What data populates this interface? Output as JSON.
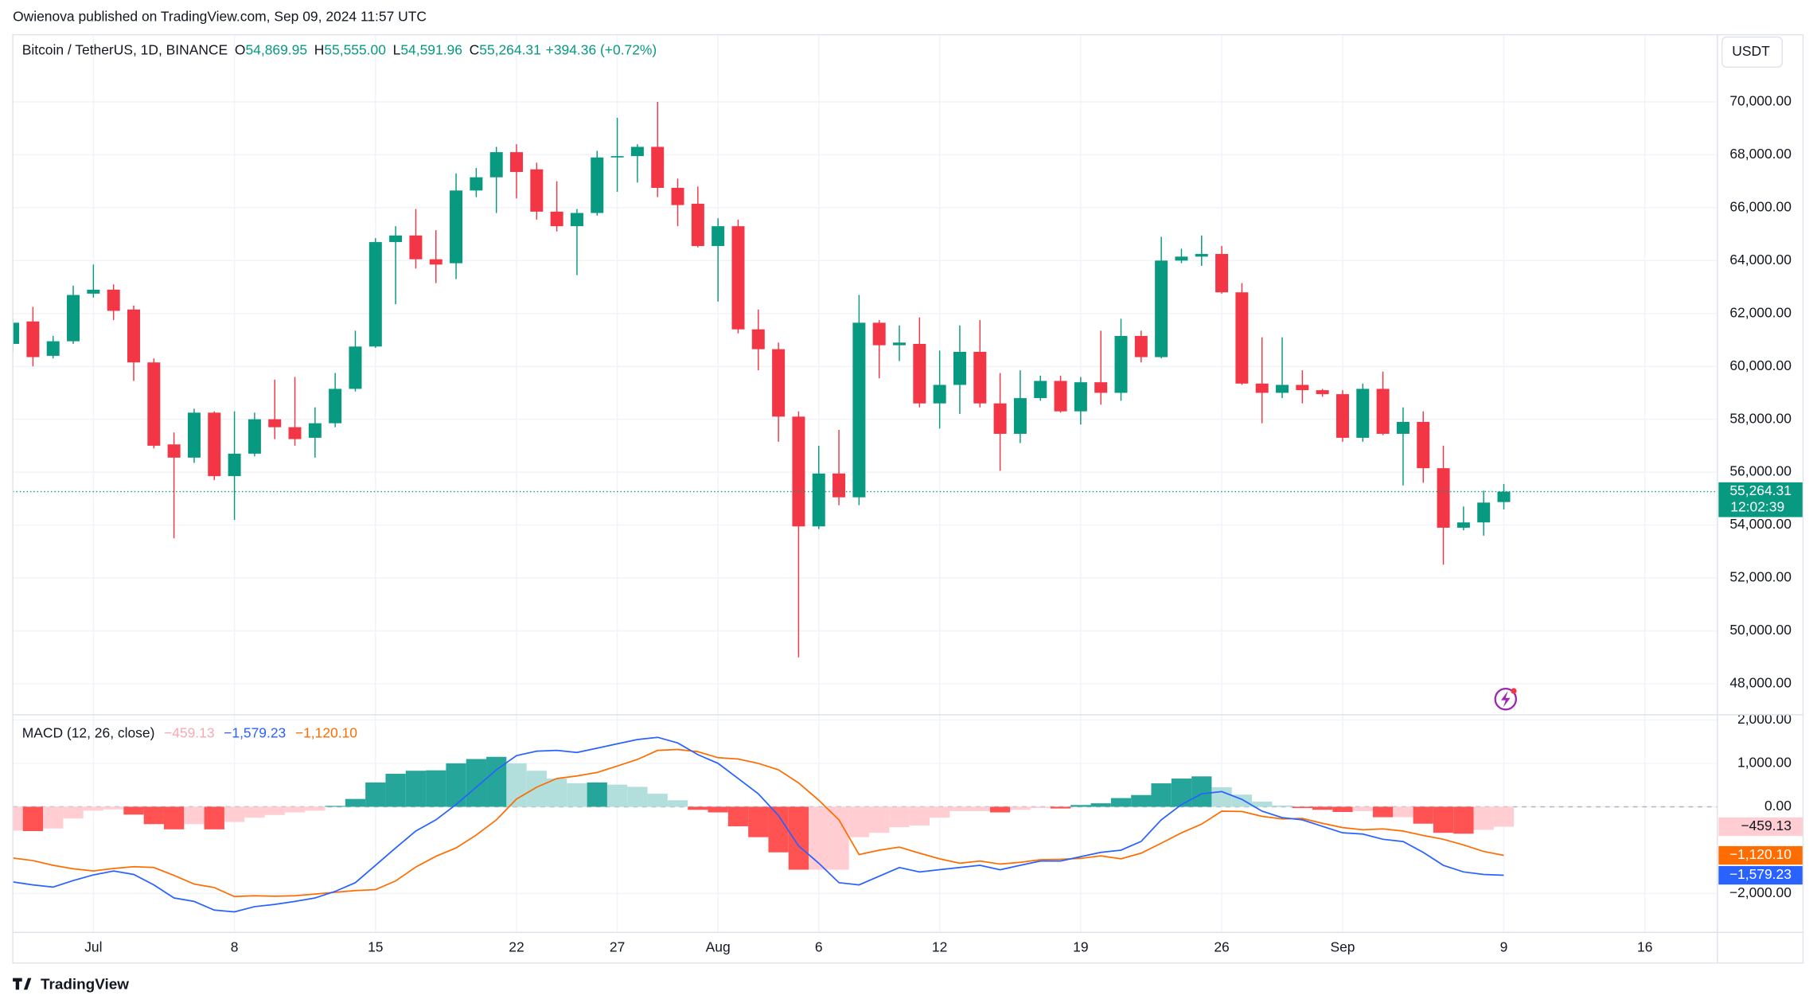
{
  "header": {
    "publisher": "Owienova published on TradingView.com, Sep 09, 2024 11:57 UTC",
    "footer_brand": "TradingView"
  },
  "chart_data": [
    {
      "type": "candlestick",
      "title": "Bitcoin / TetherUS, 1D, BINANCE",
      "ohlc_legend": [
        {
          "key": "O",
          "text": "54,869.95"
        },
        {
          "key": "H",
          "text": "55,555.00"
        },
        {
          "key": "L",
          "text": "54,591.96"
        },
        {
          "key": "C",
          "text": "55,264.31"
        }
      ],
      "change_text": "+394.36 (+0.72%)",
      "currency": "USDT",
      "last_price_label": "55,264.31",
      "countdown": "12:02:39",
      "up_color": "#089981",
      "down_color": "#f23645",
      "xlim": [
        0,
        84.6
      ],
      "xticks": [
        {
          "value": 4,
          "label": "Jul"
        },
        {
          "value": 11,
          "label": "8"
        },
        {
          "value": 18,
          "label": "15"
        },
        {
          "value": 25,
          "label": "22"
        },
        {
          "value": 30,
          "label": "27"
        },
        {
          "value": 35,
          "label": "Aug"
        },
        {
          "value": 40,
          "label": "6"
        },
        {
          "value": 46,
          "label": "12"
        },
        {
          "value": 53,
          "label": "19"
        },
        {
          "value": 60,
          "label": "26"
        },
        {
          "value": 66,
          "label": "Sep"
        },
        {
          "value": 74,
          "label": "9"
        },
        {
          "value": 81,
          "label": "16"
        }
      ],
      "ylim": [
        46850,
        72540
      ],
      "yticks": [
        {
          "value": 48000,
          "label": "48,000.00"
        },
        {
          "value": 50000,
          "label": "50,000.00"
        },
        {
          "value": 52000,
          "label": "52,000.00"
        },
        {
          "value": 54000,
          "label": "54,000.00"
        },
        {
          "value": 56000,
          "label": "56,000.00"
        },
        {
          "value": 58000,
          "label": "58,000.00"
        },
        {
          "value": 60000,
          "label": "60,000.00"
        },
        {
          "value": 62000,
          "label": "62,000.00"
        },
        {
          "value": 64000,
          "label": "64,000.00"
        },
        {
          "value": 66000,
          "label": "66,000.00"
        },
        {
          "value": 68000,
          "label": "68,000.00"
        },
        {
          "value": 70000,
          "label": "70,000.00"
        }
      ],
      "grid": true,
      "open": [
        60850,
        61700,
        60400,
        60950,
        62750,
        62900,
        62150,
        60150,
        57050,
        56550,
        58250,
        55850,
        56700,
        58000,
        57700,
        57300,
        57850,
        59150,
        60750,
        64700,
        64950,
        64050,
        63900,
        66650,
        67150,
        68100,
        67450,
        65850,
        65300,
        65800,
        67900,
        67950,
        68300,
        66750,
        66150,
        64550,
        65300,
        61400,
        60650,
        58100,
        53950,
        55950,
        55050,
        61650,
        60800,
        60850,
        58600,
        59300,
        60550,
        58600,
        57450,
        58800,
        59450,
        58300,
        59400,
        59000,
        61150,
        60350,
        64000,
        64150,
        64250,
        62800,
        59350,
        59000,
        59300,
        59100,
        58950,
        57300,
        59150,
        57450,
        57900,
        56150,
        53900,
        54100,
        54869.95
      ],
      "high": [
        61800,
        62250,
        61150,
        63050,
        63850,
        63100,
        62300,
        60300,
        57500,
        58400,
        58300,
        58300,
        58250,
        59500,
        59600,
        58450,
        59750,
        61350,
        64850,
        65300,
        65950,
        65150,
        67300,
        67500,
        68300,
        68400,
        67700,
        67000,
        65950,
        68150,
        69400,
        68400,
        70000,
        67100,
        66800,
        65600,
        65550,
        62150,
        60900,
        58300,
        57000,
        57600,
        62700,
        61750,
        61550,
        61850,
        60600,
        61550,
        61750,
        59750,
        59850,
        59650,
        59650,
        59600,
        61350,
        61800,
        61350,
        64900,
        64450,
        64950,
        64550,
        63150,
        61100,
        61100,
        59850,
        59150,
        59100,
        59350,
        59800,
        58450,
        58300,
        57000,
        54700,
        55300,
        55555
      ],
      "low": [
        60550,
        60000,
        60300,
        60850,
        62600,
        61750,
        59450,
        56900,
        53500,
        56350,
        55700,
        54200,
        56600,
        57250,
        57000,
        56550,
        57700,
        59050,
        60700,
        62350,
        63700,
        63150,
        63300,
        66400,
        65800,
        66350,
        65550,
        65100,
        63450,
        65700,
        66600,
        66950,
        66400,
        65300,
        64500,
        62450,
        61250,
        59850,
        57150,
        49000,
        53850,
        54750,
        54750,
        59550,
        60200,
        58450,
        57650,
        58200,
        58450,
        56050,
        57100,
        58700,
        58250,
        57800,
        58550,
        58700,
        60150,
        60300,
        63900,
        63800,
        62750,
        59300,
        57850,
        58800,
        58600,
        58850,
        57150,
        57150,
        57400,
        55500,
        55600,
        52500,
        53800,
        53600,
        54591.96
      ],
      "close": [
        61650,
        60350,
        60950,
        62700,
        62900,
        62100,
        60150,
        57000,
        56550,
        58250,
        55850,
        56700,
        58000,
        57700,
        57250,
        57850,
        59150,
        60750,
        64700,
        64950,
        64050,
        63850,
        66650,
        67150,
        68100,
        67350,
        65850,
        65300,
        65800,
        67900,
        67950,
        68300,
        66750,
        66100,
        64550,
        65300,
        61400,
        60650,
        58100,
        53950,
        55950,
        55050,
        61650,
        60800,
        60900,
        58600,
        59300,
        60550,
        58600,
        57450,
        58800,
        59450,
        58300,
        59400,
        59000,
        61150,
        60350,
        64000,
        64150,
        64250,
        62800,
        59350,
        59000,
        59300,
        59100,
        58950,
        57300,
        59150,
        57450,
        57900,
        56150,
        53900,
        54100,
        54850,
        55264.31
      ]
    },
    {
      "type": "macd",
      "title": "MACD (12, 26, close)",
      "ylim": [
        -2880,
        2107
      ],
      "yticks": [
        {
          "value": -2000,
          "label": "−2,000.00"
        },
        {
          "value": 0,
          "label": "0.00"
        },
        {
          "value": 1000,
          "label": "1,000.00"
        },
        {
          "value": 2000,
          "label": "2,000.00"
        }
      ],
      "histogram": {
        "colors": {
          "up_rising": "#26a69a",
          "up_falling": "#b2dfdb",
          "down_falling": "#ff5252",
          "down_rising": "#ffcdd2"
        },
        "last_label": "−459.13",
        "legend_color": "#f7a9b4",
        "values": [
          -550,
          -560,
          -500,
          -270,
          -90,
          -60,
          -180,
          -400,
          -520,
          -400,
          -520,
          -350,
          -250,
          -190,
          -130,
          -90,
          20,
          180,
          560,
          760,
          830,
          840,
          1000,
          1100,
          1150,
          1000,
          830,
          650,
          540,
          560,
          510,
          460,
          300,
          150,
          -70,
          -130,
          -450,
          -700,
          -1050,
          -1450,
          -1450,
          -1450,
          -700,
          -600,
          -470,
          -430,
          -250,
          -100,
          -100,
          -130,
          -70,
          -30,
          -40,
          40,
          80,
          200,
          270,
          540,
          650,
          700,
          450,
          280,
          120,
          30,
          -30,
          -70,
          -120,
          -100,
          -240,
          -240,
          -390,
          -600,
          -620,
          -530,
          -459.13
        ]
      },
      "macd": {
        "color": "#2962ff",
        "last_label": "−1,579.23",
        "values": [
          -1730,
          -1800,
          -1850,
          -1700,
          -1570,
          -1480,
          -1560,
          -1800,
          -2100,
          -2180,
          -2380,
          -2420,
          -2300,
          -2250,
          -2180,
          -2100,
          -1950,
          -1750,
          -1350,
          -950,
          -560,
          -300,
          50,
          450,
          850,
          1180,
          1280,
          1300,
          1250,
          1350,
          1450,
          1550,
          1600,
          1470,
          1200,
          1000,
          650,
          300,
          -200,
          -900,
          -1300,
          -1750,
          -1800,
          -1600,
          -1400,
          -1500,
          -1450,
          -1400,
          -1350,
          -1450,
          -1350,
          -1250,
          -1250,
          -1150,
          -1050,
          -1000,
          -800,
          -300,
          50,
          300,
          350,
          170,
          -100,
          -250,
          -300,
          -450,
          -600,
          -630,
          -750,
          -800,
          -1050,
          -1350,
          -1500,
          -1560,
          -1579.23
        ]
      },
      "signal": {
        "color": "#ff6d00",
        "last_label": "−1,120.10",
        "values": [
          -1180,
          -1240,
          -1350,
          -1430,
          -1480,
          -1420,
          -1380,
          -1400,
          -1580,
          -1780,
          -1860,
          -2070,
          -2050,
          -2060,
          -2050,
          -2010,
          -1970,
          -1930,
          -1910,
          -1710,
          -1390,
          -1140,
          -950,
          -650,
          -300,
          180,
          450,
          650,
          710,
          790,
          940,
          1090,
          1300,
          1320,
          1270,
          1130,
          1100,
          1000,
          850,
          550,
          150,
          -300,
          -1100,
          -1000,
          -930,
          -1070,
          -1200,
          -1300,
          -1250,
          -1320,
          -1280,
          -1220,
          -1210,
          -1190,
          -1130,
          -1200,
          -1070,
          -840,
          -600,
          -400,
          -100,
          -110,
          -220,
          -280,
          -270,
          -380,
          -480,
          -530,
          -510,
          -560,
          -660,
          -750,
          -880,
          -1030,
          -1120.1
        ]
      }
    }
  ]
}
